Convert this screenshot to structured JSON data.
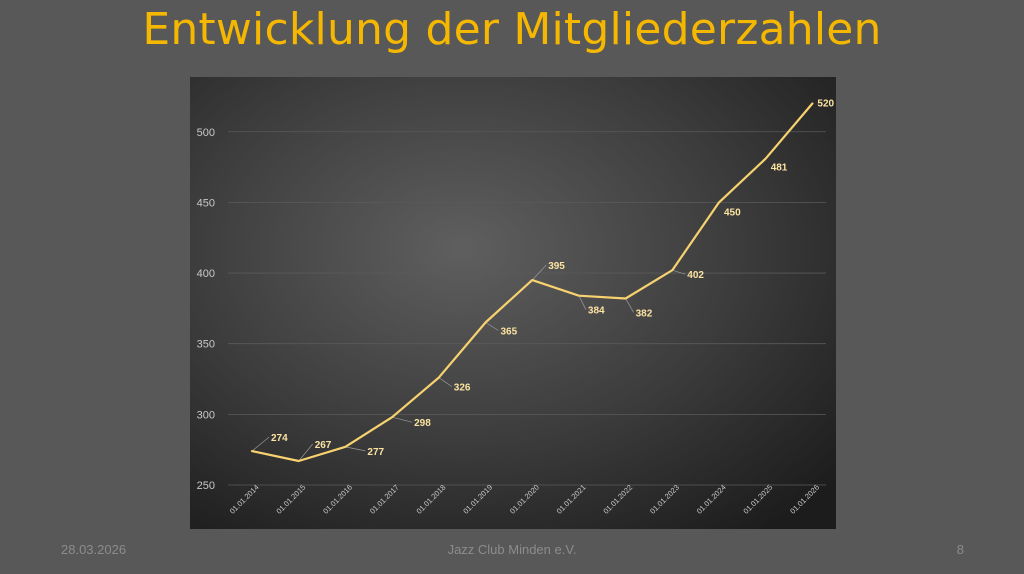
{
  "slide": {
    "title": "Entwicklung der Mitgliederzahlen",
    "footer_date": "28.03.2026",
    "footer_center": "Jazz Club Minden e.V.",
    "page_number": "8"
  },
  "colors": {
    "background": "#585858",
    "title": "#F5B700",
    "line": "#F7D26E",
    "label": "#FBE3A0",
    "axis_text": "#c8c8c8",
    "grid": "#5a5a5a"
  },
  "chart_data": {
    "type": "line",
    "title": "",
    "xlabel": "",
    "ylabel": "",
    "categories": [
      "01.01.2014",
      "01.01.2015",
      "01.01.2016",
      "01.01.2017",
      "01.01.2018",
      "01.01.2019",
      "01.01.2020",
      "01.01.2021",
      "01.01.2022",
      "01.01.2023",
      "01.01.2024",
      "01.01.2025",
      "01.01.2026"
    ],
    "series": [
      {
        "values": [
          274,
          267,
          277,
          298,
          326,
          365,
          395,
          384,
          382,
          402,
          450,
          481,
          520
        ]
      }
    ],
    "y_ticks": [
      250,
      300,
      350,
      400,
      450,
      500
    ],
    "ylim": [
      250,
      530
    ],
    "grid": true,
    "legend": "none",
    "data_labels": true
  }
}
